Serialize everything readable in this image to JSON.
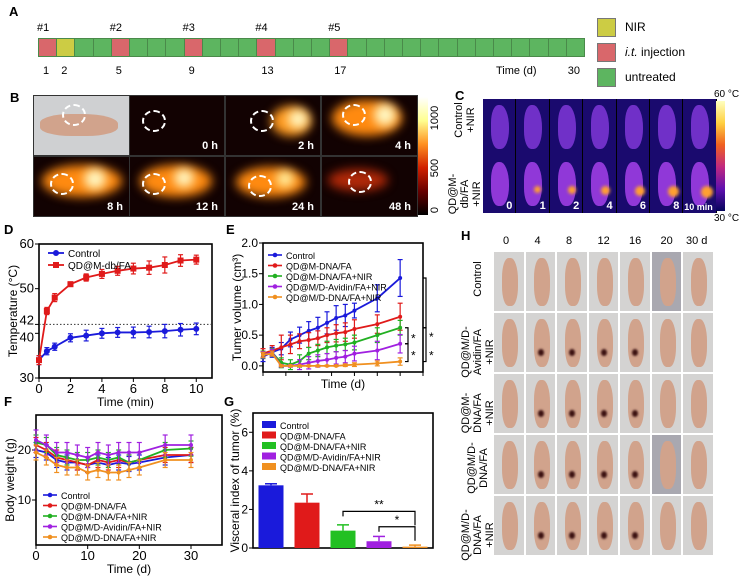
{
  "panel_labels": {
    "a": "A",
    "b": "B",
    "c": "C",
    "d": "D",
    "e": "E",
    "f": "F",
    "g": "G",
    "h": "H"
  },
  "timeline": {
    "days": 30,
    "injection_days": [
      1,
      5,
      9,
      13,
      17
    ],
    "nir_days": [
      2
    ],
    "injection_labels": [
      "#1",
      "#2",
      "#3",
      "#4",
      "#5"
    ],
    "tick_labels": [
      {
        "day": 1,
        "text": "1"
      },
      {
        "day": 2,
        "text": "2"
      },
      {
        "day": 5,
        "text": "5"
      },
      {
        "day": 9,
        "text": "9"
      },
      {
        "day": 13,
        "text": "13"
      },
      {
        "day": 17,
        "text": "17"
      },
      {
        "day": 30,
        "text": "30"
      }
    ],
    "axis_label": "Time (d)",
    "legend": [
      {
        "label": "NIR",
        "color": "#cccc44"
      },
      {
        "label_italic": "i.t.",
        "label": " injection",
        "color": "#d9676b"
      },
      {
        "label": "untreated",
        "color": "#5db560"
      }
    ],
    "colors": {
      "nir": "#cccc44",
      "injection": "#d9676b",
      "untreated": "#5db560"
    }
  },
  "panel_b": {
    "time_labels": [
      "0 h",
      "2 h",
      "4 h",
      "8 h",
      "12 h",
      "24 h",
      "48 h"
    ],
    "colorbar_ticks": [
      "1000",
      "500",
      "0"
    ]
  },
  "panel_c": {
    "row_labels": [
      "Control\n+NIR",
      "QD@M-db/FA\n+NIR"
    ],
    "time_labels": [
      "0",
      "1",
      "2",
      "4",
      "6",
      "8",
      "10 min"
    ],
    "colorbar_max": "60 °C",
    "colorbar_min": "30 °C"
  },
  "panel_h": {
    "column_labels": [
      "0",
      "4",
      "8",
      "12",
      "16",
      "20",
      "30 d"
    ],
    "row_labels": [
      "Control",
      "QD@M/D-\nAvidin/FA\n+NIR",
      "QD@M-\nDNA/FA\n+NIR",
      "QD@M/D-\nDNA/FA",
      "QD@M/D-\nDNA/FA\n+NIR"
    ]
  },
  "chart_data": [
    {
      "id": "D",
      "type": "line",
      "xlabel": "Time (min)",
      "ylabel": "Temperature (°C)",
      "xlim": [
        0,
        11
      ],
      "ylim": [
        30,
        60
      ],
      "xticks": [
        0,
        2,
        4,
        6,
        8,
        10
      ],
      "yticks": [
        30,
        40,
        42,
        50,
        60
      ],
      "reference_line": {
        "y": 42,
        "style": "dotted"
      },
      "legend": "top-left",
      "x": [
        0,
        0.5,
        1,
        2,
        3,
        4,
        5,
        6,
        7,
        8,
        9,
        10
      ],
      "series": [
        {
          "name": "Control",
          "color": "#1a1adb",
          "marker": "circle",
          "values": [
            34,
            36,
            37,
            39,
            39.5,
            40,
            40.2,
            40.2,
            40.3,
            40.5,
            40.8,
            41
          ],
          "errors": [
            1,
            0.8,
            0.8,
            0.9,
            1.2,
            1.1,
            1.1,
            1.2,
            1.3,
            1.5,
            1.4,
            1.3
          ]
        },
        {
          "name": "QD@M-db/FA",
          "color": "#e01a1a",
          "marker": "square",
          "values": [
            34,
            45,
            48,
            51,
            52.5,
            53.3,
            54,
            54.5,
            54.7,
            55.3,
            56.3,
            56.5
          ],
          "errors": [
            1,
            0.8,
            0.9,
            0.5,
            0.8,
            1,
            1,
            1.2,
            1.5,
            1.8,
            1.3,
            1
          ]
        }
      ]
    },
    {
      "id": "E",
      "type": "line",
      "xlabel": "Time (d)",
      "ylabel": "Tumer volume (cm³)",
      "xlim": [
        0,
        35
      ],
      "ylim": [
        -0.1,
        2.0
      ],
      "xticks": [
        0,
        5,
        10,
        15,
        20,
        25,
        30,
        35
      ],
      "yticks": [
        0.0,
        0.5,
        1.0,
        1.5,
        2.0
      ],
      "legend": "top-left",
      "annotations": [
        "*",
        "*",
        "*",
        "*"
      ],
      "x": [
        0,
        2,
        4,
        6,
        8,
        10,
        12,
        14,
        16,
        18,
        20,
        25,
        30
      ],
      "series": [
        {
          "name": "Control",
          "color": "#1a1adb",
          "values": [
            0.15,
            0.22,
            0.28,
            0.43,
            0.5,
            0.57,
            0.62,
            0.7,
            0.78,
            0.82,
            0.9,
            1.1,
            1.43
          ],
          "errors": [
            0.08,
            0.08,
            0.1,
            0.12,
            0.13,
            0.15,
            0.17,
            0.18,
            0.2,
            0.18,
            0.12,
            0.22,
            0.3
          ]
        },
        {
          "name": "QD@M-DNA/FA",
          "color": "#e01a1a",
          "values": [
            0.2,
            0.25,
            0.3,
            0.35,
            0.4,
            0.42,
            0.45,
            0.5,
            0.53,
            0.55,
            0.6,
            0.68,
            0.8
          ],
          "errors": [
            0.08,
            0.08,
            0.2,
            0.15,
            0.12,
            0.12,
            0.12,
            0.12,
            0.14,
            0.15,
            0.15,
            0.15,
            0.22
          ]
        },
        {
          "name": "QD@M-DNA/FA+NIR",
          "color": "#22b022",
          "values": [
            0.18,
            0.22,
            0.05,
            0.02,
            0.08,
            0.2,
            0.25,
            0.3,
            0.33,
            0.35,
            0.38,
            0.5,
            0.62
          ],
          "errors": [
            0.06,
            0.06,
            0.08,
            0.08,
            0.1,
            0.1,
            0.1,
            0.1,
            0.1,
            0.1,
            0.12,
            0.12,
            0.12
          ]
        },
        {
          "name": "QD@M/D-Avidin/FA+NIR",
          "color": "#a020e0",
          "values": [
            0.18,
            0.22,
            0.0,
            0.0,
            0.02,
            0.05,
            0.08,
            0.1,
            0.13,
            0.15,
            0.2,
            0.25,
            0.36
          ],
          "errors": [
            0.05,
            0.05,
            0.02,
            0.02,
            0.08,
            0.1,
            0.1,
            0.1,
            0.1,
            0.1,
            0.12,
            0.15,
            0.15
          ]
        },
        {
          "name": "QD@M/D-DNA/FA+NIR",
          "color": "#f09020",
          "values": [
            0.18,
            0.2,
            0.0,
            0.0,
            0.0,
            0.0,
            0.0,
            0.0,
            0.0,
            0.01,
            0.02,
            0.04,
            0.07
          ],
          "errors": [
            0.04,
            0.04,
            0.01,
            0.01,
            0.01,
            0.01,
            0.01,
            0.01,
            0.01,
            0.02,
            0.03,
            0.04,
            0.06
          ]
        }
      ]
    },
    {
      "id": "F",
      "type": "line",
      "xlabel": "Time (d)",
      "ylabel": "Body weight (g)",
      "xlim": [
        0,
        36
      ],
      "ylim": [
        1,
        27
      ],
      "xticks": [
        0,
        10,
        20,
        30
      ],
      "yticks": [
        10,
        20
      ],
      "legend": "bottom-left",
      "x": [
        0,
        2,
        4,
        6,
        8,
        10,
        12,
        14,
        16,
        18,
        20,
        25,
        30
      ],
      "series": [
        {
          "name": "Control",
          "color": "#1a1adb",
          "values": [
            20,
            19.5,
            18,
            17.5,
            17.5,
            17,
            17.5,
            17,
            17.5,
            17.2,
            17.5,
            18.5,
            19
          ],
          "errors": [
            1.5,
            1.5,
            1.5,
            1.5,
            1.5,
            1.5,
            1.5,
            1.5,
            1.5,
            1.5,
            1.5,
            1.5,
            1.5
          ]
        },
        {
          "name": "QD@M-DNA/FA",
          "color": "#e01a1a",
          "values": [
            21,
            20,
            18.5,
            18,
            17.5,
            17,
            18,
            17.5,
            18,
            17.5,
            18,
            19,
            19
          ],
          "errors": [
            1.5,
            1.5,
            1.5,
            1.5,
            1.5,
            1.5,
            1.5,
            1.5,
            1.5,
            1.5,
            1.5,
            1.5,
            1.5
          ]
        },
        {
          "name": "QD@M-DNA/FA+NIR",
          "color": "#22b022",
          "values": [
            21.5,
            21,
            19,
            18.5,
            18,
            18,
            18.5,
            18,
            18.5,
            17.5,
            18,
            20,
            20.3
          ],
          "errors": [
            1.5,
            1.5,
            1.5,
            1.5,
            1.5,
            1.5,
            1.5,
            1.5,
            1.5,
            1.5,
            1.5,
            1.5,
            1.5
          ]
        },
        {
          "name": "QD@M/D-Avidin/FA+NIR",
          "color": "#a020e0",
          "values": [
            22,
            21,
            19.5,
            19.5,
            19,
            18.5,
            19.5,
            19,
            19.5,
            19.5,
            19.5,
            21,
            21
          ],
          "errors": [
            2,
            2,
            2,
            2,
            2,
            2,
            2,
            2,
            2,
            2,
            2,
            2,
            2
          ]
        },
        {
          "name": "QD@M/D-DNA/FA+NIR",
          "color": "#f09020",
          "values": [
            19.5,
            18.5,
            17,
            16.5,
            16.5,
            15.5,
            16,
            15.5,
            15.5,
            16,
            16.5,
            18,
            18
          ],
          "errors": [
            1.5,
            1.5,
            1.5,
            1.5,
            1.5,
            1.5,
            1.5,
            1.5,
            1.5,
            1.5,
            1.5,
            1.5,
            1.5
          ]
        }
      ]
    },
    {
      "id": "G",
      "type": "bar",
      "xlabel": "",
      "ylabel": "Visceral index of tumor (%)",
      "ylim": [
        0,
        7
      ],
      "yticks": [
        0,
        2,
        4,
        6
      ],
      "legend": "top-left",
      "categories": [
        "Control",
        "QD@M-DNA/FA",
        "QD@M-DNA/FA+NIR",
        "QD@M/D-Avidin/FA+NIR",
        "QD@M/D-DNA/FA+NIR"
      ],
      "colors": [
        "#1a1adb",
        "#e01a1a",
        "#22c022",
        "#a020e0",
        "#f09020"
      ],
      "values": [
        3.25,
        2.35,
        0.9,
        0.35,
        0.07
      ],
      "errors": [
        0.08,
        0.45,
        0.3,
        0.25,
        0.08
      ],
      "significance": [
        {
          "from": 2,
          "to": 4,
          "label": "**"
        },
        {
          "from": 3,
          "to": 4,
          "label": "*"
        }
      ]
    }
  ]
}
